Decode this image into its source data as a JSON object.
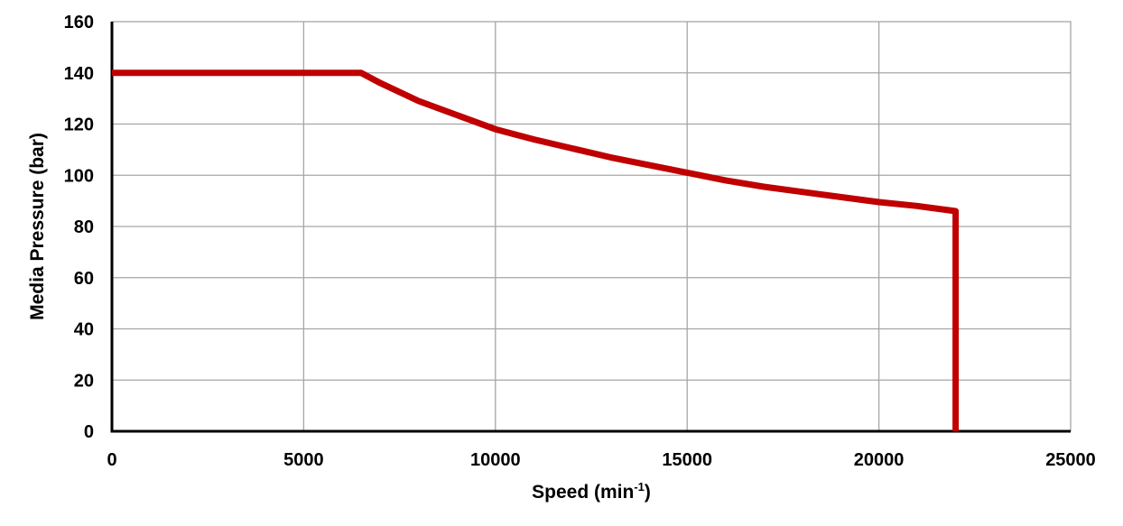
{
  "chart_data": {
    "type": "line",
    "title": "",
    "xlabel": "Speed (min",
    "xlabel_superscript": "-1",
    "xlabel_suffix": ")",
    "ylabel": "Media Pressure (bar)",
    "xlim": [
      0,
      25000
    ],
    "ylim": [
      0,
      160
    ],
    "x_ticks": [
      0,
      5000,
      10000,
      15000,
      20000,
      25000
    ],
    "y_ticks": [
      0,
      20,
      40,
      60,
      80,
      100,
      120,
      140,
      160
    ],
    "grid": true,
    "legend": "none",
    "series": [
      {
        "color": "#c00000",
        "x": [
          0,
          6500,
          7000,
          8000,
          9000,
          10000,
          11000,
          12000,
          13000,
          14000,
          15000,
          16000,
          17000,
          18000,
          19000,
          20000,
          21000,
          22000,
          22000
        ],
        "y": [
          140,
          140,
          136,
          129,
          123.5,
          118,
          114,
          110.5,
          107,
          104,
          101,
          98,
          95.5,
          93.5,
          91.5,
          89.5,
          88,
          86,
          0
        ]
      }
    ]
  }
}
